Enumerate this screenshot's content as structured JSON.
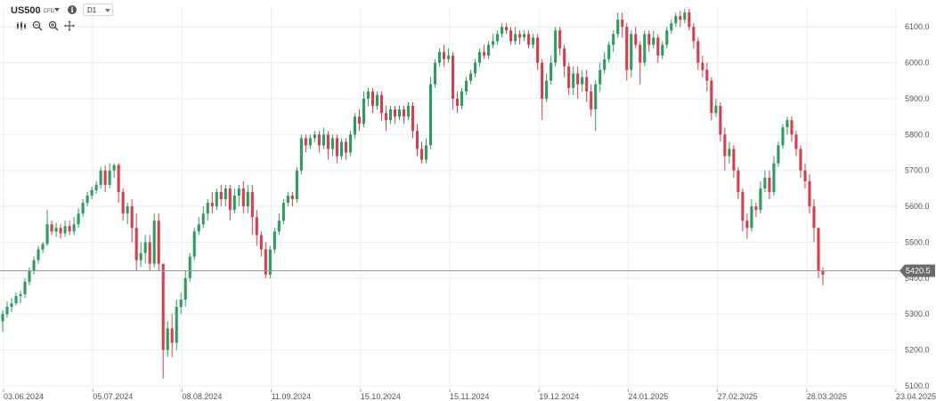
{
  "toolbar": {
    "symbol": "US500",
    "symbol_type": "CFD",
    "info_label": "i",
    "timeframe": "D1",
    "tools": [
      "candles-icon",
      "zoom-out-icon",
      "zoom-in-icon",
      "crosshair-icon"
    ]
  },
  "colors": {
    "up": "#2e9c5f",
    "down": "#d23f4f",
    "price_line": "#9a9a9a",
    "price_tag": "#6b6b6b",
    "grid": "#eeeeee",
    "axis_text": "#555555"
  },
  "chart_data": {
    "type": "candlestick",
    "y_ticks": [
      "5100.0",
      "5200.0",
      "5300.0",
      "5400.0",
      "5500.0",
      "5600.0",
      "5700.0",
      "5800.0",
      "5900.0",
      "6000.0",
      "6100.0"
    ],
    "y_range": [
      5090,
      6155
    ],
    "x_ticks": [
      "03.06.2024",
      "05.07.2024",
      "08.08.2024",
      "11.09.2024",
      "15.10.2024",
      "15.11.2024",
      "19.12.2024",
      "24.01.2025",
      "27.02.2025",
      "28.03.2025",
      "23.04.2025"
    ],
    "current_price": 5420.5,
    "current_price_label": "5420.5",
    "grid": true,
    "candles": [
      [
        5280,
        5300,
        5250,
        5310
      ],
      [
        5300,
        5320,
        5290,
        5335
      ],
      [
        5320,
        5330,
        5305,
        5345
      ],
      [
        5330,
        5350,
        5325,
        5360
      ],
      [
        5350,
        5355,
        5330,
        5365
      ],
      [
        5355,
        5390,
        5345,
        5400
      ],
      [
        5390,
        5420,
        5380,
        5430
      ],
      [
        5420,
        5450,
        5410,
        5460
      ],
      [
        5450,
        5480,
        5440,
        5490
      ],
      [
        5480,
        5495,
        5470,
        5500
      ],
      [
        5495,
        5550,
        5490,
        5590
      ],
      [
        5550,
        5530,
        5520,
        5560
      ],
      [
        5530,
        5540,
        5515,
        5555
      ],
      [
        5540,
        5525,
        5510,
        5550
      ],
      [
        5525,
        5545,
        5515,
        5560
      ],
      [
        5545,
        5530,
        5520,
        5560
      ],
      [
        5530,
        5550,
        5520,
        5570
      ],
      [
        5550,
        5580,
        5540,
        5595
      ],
      [
        5580,
        5610,
        5570,
        5620
      ],
      [
        5610,
        5630,
        5600,
        5640
      ],
      [
        5630,
        5645,
        5620,
        5655
      ],
      [
        5645,
        5660,
        5635,
        5670
      ],
      [
        5660,
        5700,
        5650,
        5710
      ],
      [
        5700,
        5660,
        5640,
        5715
      ],
      [
        5660,
        5700,
        5650,
        5720
      ],
      [
        5700,
        5715,
        5680,
        5720
      ],
      [
        5715,
        5640,
        5610,
        5720
      ],
      [
        5640,
        5580,
        5560,
        5650
      ],
      [
        5580,
        5600,
        5550,
        5610
      ],
      [
        5600,
        5540,
        5500,
        5620
      ],
      [
        5540,
        5450,
        5420,
        5580
      ],
      [
        5450,
        5470,
        5430,
        5500
      ],
      [
        5470,
        5500,
        5440,
        5520
      ],
      [
        5500,
        5440,
        5420,
        5520
      ],
      [
        5440,
        5560,
        5430,
        5580
      ],
      [
        5560,
        5440,
        5420,
        5580
      ],
      [
        5440,
        5200,
        5120,
        5440
      ],
      [
        5200,
        5260,
        5180,
        5280
      ],
      [
        5260,
        5220,
        5180,
        5300
      ],
      [
        5220,
        5320,
        5200,
        5340
      ],
      [
        5320,
        5340,
        5300,
        5360
      ],
      [
        5340,
        5400,
        5320,
        5420
      ],
      [
        5400,
        5460,
        5390,
        5470
      ],
      [
        5460,
        5530,
        5450,
        5540
      ],
      [
        5530,
        5550,
        5520,
        5570
      ],
      [
        5550,
        5580,
        5540,
        5600
      ],
      [
        5580,
        5610,
        5560,
        5620
      ],
      [
        5610,
        5600,
        5580,
        5640
      ],
      [
        5600,
        5640,
        5590,
        5650
      ],
      [
        5640,
        5620,
        5600,
        5660
      ],
      [
        5620,
        5650,
        5600,
        5660
      ],
      [
        5650,
        5590,
        5560,
        5660
      ],
      [
        5590,
        5630,
        5580,
        5650
      ],
      [
        5630,
        5650,
        5600,
        5660
      ],
      [
        5650,
        5600,
        5580,
        5670
      ],
      [
        5600,
        5640,
        5580,
        5660
      ],
      [
        5640,
        5570,
        5520,
        5660
      ],
      [
        5570,
        5520,
        5490,
        5590
      ],
      [
        5520,
        5480,
        5460,
        5530
      ],
      [
        5480,
        5410,
        5400,
        5500
      ],
      [
        5410,
        5480,
        5400,
        5490
      ],
      [
        5480,
        5530,
        5470,
        5540
      ],
      [
        5530,
        5560,
        5520,
        5580
      ],
      [
        5560,
        5610,
        5550,
        5620
      ],
      [
        5610,
        5630,
        5600,
        5640
      ],
      [
        5630,
        5620,
        5600,
        5640
      ],
      [
        5620,
        5700,
        5610,
        5710
      ],
      [
        5700,
        5790,
        5690,
        5800
      ],
      [
        5790,
        5770,
        5750,
        5800
      ],
      [
        5770,
        5790,
        5760,
        5800
      ],
      [
        5790,
        5800,
        5780,
        5810
      ],
      [
        5800,
        5770,
        5750,
        5810
      ],
      [
        5770,
        5800,
        5760,
        5820
      ],
      [
        5800,
        5760,
        5730,
        5810
      ],
      [
        5760,
        5790,
        5740,
        5800
      ],
      [
        5790,
        5740,
        5720,
        5800
      ],
      [
        5740,
        5780,
        5730,
        5790
      ],
      [
        5780,
        5750,
        5730,
        5790
      ],
      [
        5750,
        5800,
        5740,
        5810
      ],
      [
        5800,
        5850,
        5790,
        5860
      ],
      [
        5850,
        5830,
        5810,
        5870
      ],
      [
        5830,
        5900,
        5820,
        5920
      ],
      [
        5900,
        5920,
        5880,
        5930
      ],
      [
        5920,
        5880,
        5860,
        5930
      ],
      [
        5880,
        5910,
        5870,
        5920
      ],
      [
        5910,
        5860,
        5840,
        5920
      ],
      [
        5860,
        5840,
        5810,
        5880
      ],
      [
        5840,
        5870,
        5830,
        5880
      ],
      [
        5870,
        5850,
        5830,
        5880
      ],
      [
        5850,
        5870,
        5840,
        5880
      ],
      [
        5870,
        5850,
        5830,
        5880
      ],
      [
        5850,
        5880,
        5840,
        5890
      ],
      [
        5880,
        5810,
        5790,
        5890
      ],
      [
        5810,
        5760,
        5740,
        5830
      ],
      [
        5760,
        5730,
        5720,
        5780
      ],
      [
        5730,
        5770,
        5720,
        5790
      ],
      [
        5770,
        5940,
        5760,
        5960
      ],
      [
        5940,
        6000,
        5930,
        6010
      ],
      [
        6000,
        6030,
        5990,
        6040
      ],
      [
        6030,
        6010,
        5990,
        6050
      ],
      [
        6010,
        6020,
        6000,
        6040
      ],
      [
        6020,
        5900,
        5870,
        6030
      ],
      [
        5900,
        5880,
        5860,
        5920
      ],
      [
        5880,
        5920,
        5870,
        5930
      ],
      [
        5920,
        5950,
        5910,
        5960
      ],
      [
        5950,
        5970,
        5940,
        5980
      ],
      [
        5970,
        6000,
        5960,
        6010
      ],
      [
        6000,
        6030,
        5990,
        6040
      ],
      [
        6030,
        6020,
        6010,
        6050
      ],
      [
        6020,
        6050,
        6010,
        6060
      ],
      [
        6050,
        6060,
        6040,
        6080
      ],
      [
        6060,
        6080,
        6050,
        6090
      ],
      [
        6080,
        6100,
        6070,
        6110
      ],
      [
        6100,
        6090,
        6080,
        6110
      ],
      [
        6090,
        6060,
        6050,
        6100
      ],
      [
        6060,
        6080,
        6050,
        6100
      ],
      [
        6080,
        6070,
        6050,
        6090
      ],
      [
        6070,
        6080,
        6060,
        6090
      ],
      [
        6080,
        6050,
        6040,
        6090
      ],
      [
        6050,
        6070,
        6040,
        6080
      ],
      [
        6070,
        6000,
        5980,
        6080
      ],
      [
        6000,
        5900,
        5840,
        6010
      ],
      [
        5900,
        5950,
        5890,
        5970
      ],
      [
        5950,
        6000,
        5940,
        6020
      ],
      [
        6000,
        6090,
        5990,
        6100
      ],
      [
        6090,
        6040,
        6020,
        6100
      ],
      [
        6040,
        5990,
        5960,
        6050
      ],
      [
        5990,
        5930,
        5910,
        6000
      ],
      [
        5930,
        5970,
        5910,
        5990
      ],
      [
        5970,
        5940,
        5900,
        5990
      ],
      [
        5940,
        5960,
        5920,
        5980
      ],
      [
        5960,
        5920,
        5890,
        5980
      ],
      [
        5920,
        5870,
        5850,
        5940
      ],
      [
        5870,
        5940,
        5810,
        5950
      ],
      [
        5940,
        5980,
        5920,
        6000
      ],
      [
        5980,
        6010,
        5970,
        6030
      ],
      [
        6010,
        6050,
        6000,
        6060
      ],
      [
        6050,
        6080,
        6030,
        6090
      ],
      [
        6080,
        6120,
        6070,
        6140
      ],
      [
        6120,
        6100,
        6070,
        6140
      ],
      [
        6100,
        5980,
        5950,
        6110
      ],
      [
        5980,
        6080,
        5960,
        6090
      ],
      [
        6080,
        6050,
        6040,
        6100
      ],
      [
        6050,
        6000,
        5940,
        6060
      ],
      [
        6000,
        6080,
        5990,
        6090
      ],
      [
        6080,
        6050,
        6030,
        6090
      ],
      [
        6050,
        6070,
        6040,
        6090
      ],
      [
        6070,
        6020,
        6000,
        6080
      ],
      [
        6020,
        6050,
        6010,
        6060
      ],
      [
        6050,
        6090,
        6040,
        6100
      ],
      [
        6090,
        6110,
        6080,
        6120
      ],
      [
        6110,
        6130,
        6100,
        6140
      ],
      [
        6130,
        6120,
        6100,
        6145
      ],
      [
        6120,
        6140,
        6110,
        6150
      ],
      [
        6140,
        6100,
        6090,
        6150
      ],
      [
        6100,
        6060,
        6040,
        6110
      ],
      [
        6060,
        6000,
        5980,
        6070
      ],
      [
        6000,
        5980,
        5960,
        6020
      ],
      [
        5980,
        5950,
        5920,
        6000
      ],
      [
        5950,
        5860,
        5840,
        5960
      ],
      [
        5860,
        5880,
        5850,
        5900
      ],
      [
        5880,
        5800,
        5780,
        5890
      ],
      [
        5800,
        5740,
        5700,
        5820
      ],
      [
        5740,
        5760,
        5720,
        5780
      ],
      [
        5760,
        5700,
        5680,
        5770
      ],
      [
        5700,
        5640,
        5620,
        5710
      ],
      [
        5640,
        5560,
        5530,
        5650
      ],
      [
        5560,
        5540,
        5510,
        5580
      ],
      [
        5540,
        5600,
        5530,
        5620
      ],
      [
        5600,
        5590,
        5570,
        5610
      ],
      [
        5590,
        5650,
        5580,
        5670
      ],
      [
        5650,
        5680,
        5640,
        5700
      ],
      [
        5680,
        5640,
        5620,
        5700
      ],
      [
        5640,
        5720,
        5630,
        5740
      ],
      [
        5720,
        5770,
        5710,
        5780
      ],
      [
        5770,
        5820,
        5760,
        5830
      ],
      [
        5820,
        5840,
        5800,
        5850
      ],
      [
        5840,
        5800,
        5780,
        5850
      ],
      [
        5800,
        5760,
        5740,
        5810
      ],
      [
        5760,
        5700,
        5680,
        5770
      ],
      [
        5700,
        5670,
        5650,
        5720
      ],
      [
        5670,
        5600,
        5580,
        5690
      ],
      [
        5600,
        5540,
        5500,
        5620
      ],
      [
        5540,
        5420,
        5400,
        5540
      ],
      [
        5420,
        5410,
        5380,
        5430
      ]
    ]
  }
}
